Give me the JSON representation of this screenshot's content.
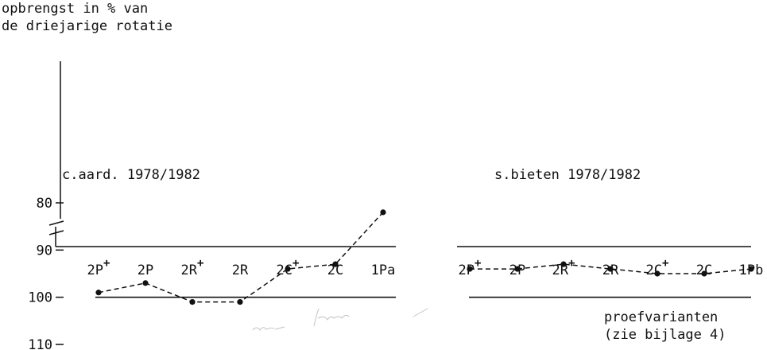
{
  "chart_data": [
    {
      "type": "line",
      "panel": "left",
      "title": "c.aard. 1978/1982",
      "ylabel": [
        "opbrengst in % van",
        "de driejarige rotatie"
      ],
      "xlabel": [
        "proefvarianten",
        "(zie bijlage 4)"
      ],
      "ylim": [
        80,
        110
      ],
      "yticks": [
        110,
        100,
        90,
        80
      ],
      "reference_line": 100,
      "categories": [
        "2P+",
        "2P",
        "2R+",
        "2R",
        "2C+",
        "2C",
        "1Pa"
      ],
      "values": [
        99,
        97,
        101,
        101,
        94,
        93,
        82
      ]
    },
    {
      "type": "line",
      "panel": "right",
      "title": "s.bieten 1978/1982",
      "ylim": [
        80,
        110
      ],
      "reference_line": 100,
      "categories": [
        "2P+",
        "2P",
        "2R+",
        "2R",
        "2C+",
        "2C",
        "1Pb"
      ],
      "values": [
        94,
        94,
        93,
        94,
        95,
        95,
        94
      ]
    }
  ],
  "colors": {
    "ink": "#111111",
    "background": "#ffffff"
  }
}
